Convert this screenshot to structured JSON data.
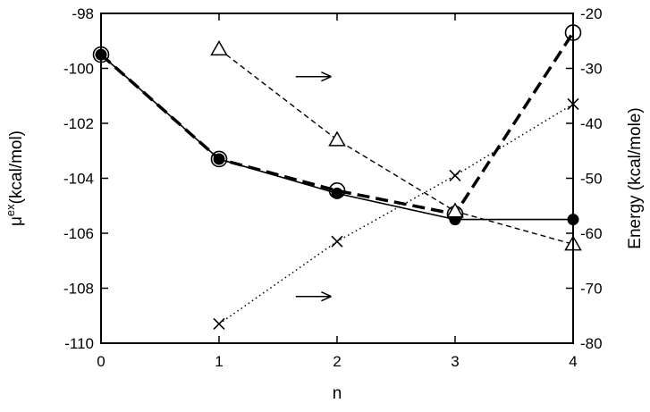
{
  "chart_data": {
    "type": "line",
    "xlabel": "n",
    "ylabel_left": {
      "main": "μ",
      "sup": "ex",
      "rest": "(kcal/mol)"
    },
    "ylabel_right": "Energy (kcal/mole)",
    "xlim": [
      0,
      4
    ],
    "ylim_left": [
      -110,
      -98
    ],
    "ylim_right": [
      -80,
      -20
    ],
    "x_ticks": [
      0,
      1,
      2,
      3,
      4
    ],
    "y_ticks_left": [
      -110,
      -108,
      -106,
      -104,
      -102,
      -100,
      -98
    ],
    "y_ticks_right": [
      -80,
      -70,
      -60,
      -50,
      -40,
      -30,
      -20
    ],
    "grid": false,
    "legend": "none",
    "series": [
      {
        "axis": "left",
        "style": "solid",
        "marker": "filled-circle",
        "x": [
          0,
          1,
          2,
          3,
          4
        ],
        "values": [
          -99.5,
          -103.3,
          -104.55,
          -105.5,
          -105.5
        ]
      },
      {
        "axis": "left",
        "style": "bold-dashed",
        "marker": "open-circle",
        "x": [
          0,
          1,
          2,
          3,
          4
        ],
        "values": [
          -99.5,
          -103.3,
          -104.45,
          -105.3,
          -98.7
        ]
      },
      {
        "axis": "right",
        "style": "dashed",
        "marker": "open-triangle",
        "x": [
          1,
          2,
          3,
          4
        ],
        "values": [
          -26.5,
          -43,
          -56,
          -62
        ]
      },
      {
        "axis": "right",
        "style": "dotted",
        "marker": "cross",
        "x": [
          1,
          2,
          3,
          4
        ],
        "values": [
          -76.5,
          -61.5,
          -49.5,
          -36.5
        ]
      }
    ],
    "annotations": [
      {
        "type": "arrow",
        "direction": "right",
        "x": [
          1.65,
          1.95
        ],
        "y_left": -100.3
      },
      {
        "type": "arrow",
        "direction": "right",
        "x": [
          1.65,
          1.95
        ],
        "y_left": -108.3
      }
    ]
  }
}
